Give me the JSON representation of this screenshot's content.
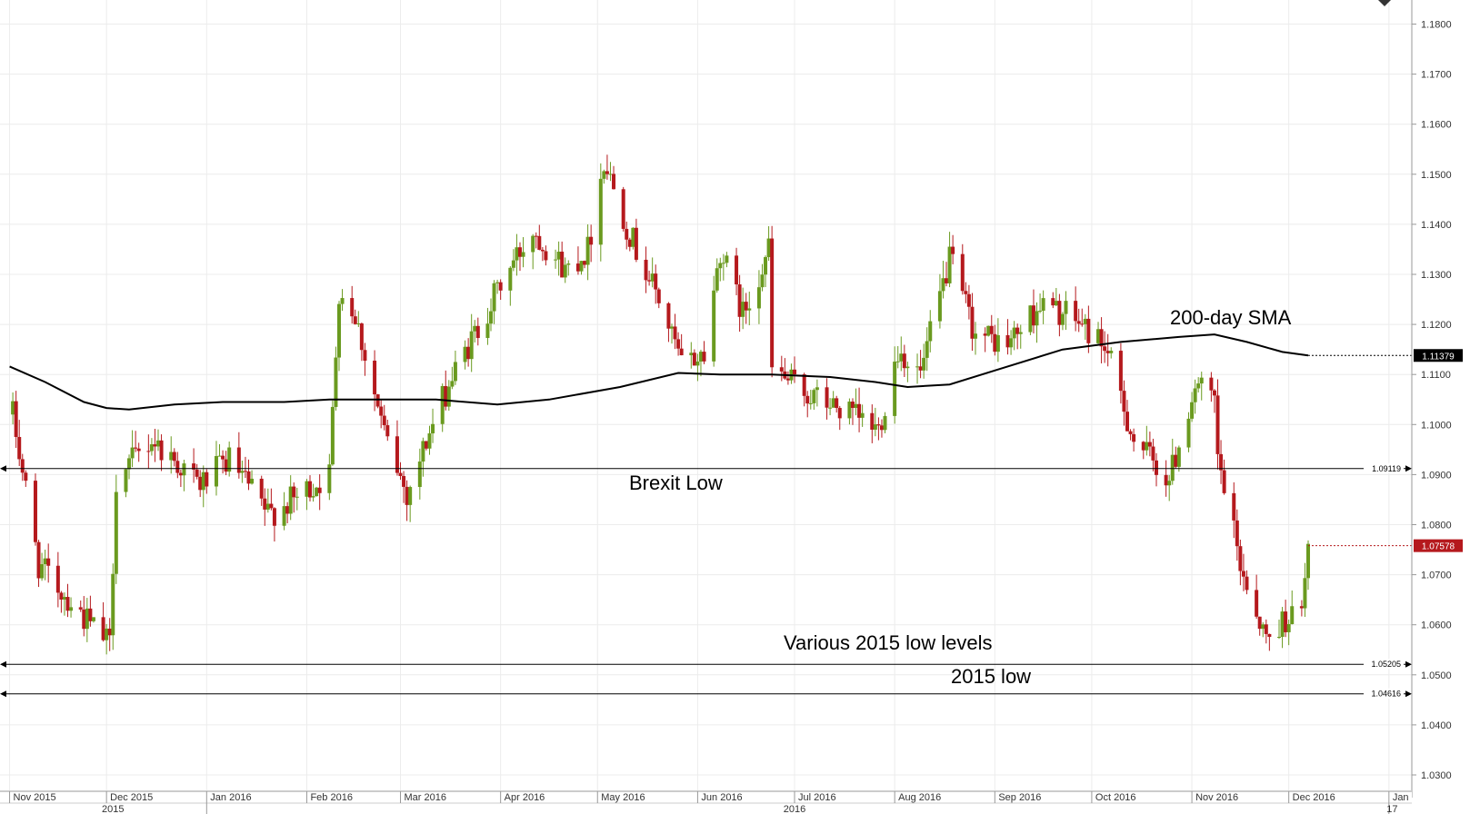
{
  "chart_data": {
    "type": "candlestick",
    "title": "",
    "xlabel": "",
    "ylabel": "",
    "ylim": [
      1.025,
      1.19
    ],
    "y_ticks": [
      "1.0300",
      "1.0400",
      "1.0500",
      "1.0600",
      "1.0700",
      "1.0800",
      "1.0900",
      "1.1000",
      "1.1100",
      "1.1200",
      "1.1300",
      "1.1400",
      "1.1500",
      "1.1600",
      "1.1700",
      "1.1800"
    ],
    "x_months": [
      "Nov 2015",
      "Dec 2015",
      "Jan 2016",
      "Feb 2016",
      "Mar 2016",
      "Apr 2016",
      "May 2016",
      "Jun 2016",
      "Jul 2016",
      "Aug 2016",
      "Sep 2016",
      "Oct 2016",
      "Nov 2016",
      "Dec 2016",
      "Jan"
    ],
    "x_years": [
      "2015",
      "2016",
      "17"
    ],
    "colors": {
      "up": "#6a9a1f",
      "down": "#b5191d",
      "sma": "#000000",
      "last_price": "#b5191d",
      "sma_tag": "#000000",
      "grid": "#ececec"
    },
    "price_path": [
      [
        "2015-11-02",
        1.102
      ],
      [
        "2015-11-10",
        1.072
      ],
      [
        "2015-11-18",
        1.066
      ],
      [
        "2015-11-26",
        1.06
      ],
      [
        "2015-12-02",
        1.056
      ],
      [
        "2015-12-04",
        1.089
      ],
      [
        "2015-12-15",
        1.097
      ],
      [
        "2015-12-30",
        1.088
      ],
      [
        "2016-01-08",
        1.093
      ],
      [
        "2016-01-20",
        1.082
      ],
      [
        "2016-01-28",
        1.085
      ],
      [
        "2016-02-08",
        1.09
      ],
      [
        "2016-02-11",
        1.127
      ],
      [
        "2016-02-16",
        1.122
      ],
      [
        "2016-02-25",
        1.098
      ],
      [
        "2016-03-03",
        1.086
      ],
      [
        "2016-03-08",
        1.095
      ],
      [
        "2016-03-16",
        1.108
      ],
      [
        "2016-03-24",
        1.118
      ],
      [
        "2016-04-01",
        1.128
      ],
      [
        "2016-04-11",
        1.139
      ],
      [
        "2016-04-21",
        1.131
      ],
      [
        "2016-04-28",
        1.135
      ],
      [
        "2016-05-03",
        1.153
      ],
      [
        "2016-05-11",
        1.138
      ],
      [
        "2016-05-20",
        1.125
      ],
      [
        "2016-05-27",
        1.112
      ],
      [
        "2016-06-03",
        1.114
      ],
      [
        "2016-06-08",
        1.135
      ],
      [
        "2016-06-15",
        1.122
      ],
      [
        "2016-06-23",
        1.135
      ],
      [
        "2016-06-24",
        1.111
      ],
      [
        "2016-07-05",
        1.106
      ],
      [
        "2016-07-15",
        1.103
      ],
      [
        "2016-07-27",
        1.099
      ],
      [
        "2016-08-02",
        1.115
      ],
      [
        "2016-08-09",
        1.11
      ],
      [
        "2016-08-18",
        1.133
      ],
      [
        "2016-08-26",
        1.118
      ],
      [
        "2016-09-05",
        1.116
      ],
      [
        "2016-09-15",
        1.124
      ],
      [
        "2016-09-26",
        1.121
      ],
      [
        "2016-10-05",
        1.116
      ],
      [
        "2016-10-14",
        1.097
      ],
      [
        "2016-10-25",
        1.089
      ],
      [
        "2016-11-02",
        1.108
      ],
      [
        "2016-11-08",
        1.104
      ],
      [
        "2016-11-09",
        1.093
      ],
      [
        "2016-11-16",
        1.072
      ],
      [
        "2016-11-24",
        1.057
      ],
      [
        "2016-12-01",
        1.062
      ],
      [
        "2016-12-05",
        1.062
      ],
      [
        "2016-12-07",
        1.0758
      ]
    ],
    "series": [
      {
        "name": "200-day SMA",
        "points": [
          [
            "2015-11-01",
            1.1116
          ],
          [
            "2015-11-12",
            1.1085
          ],
          [
            "2015-11-24",
            1.1045
          ],
          [
            "2015-12-01",
            1.1033
          ],
          [
            "2015-12-08",
            1.103
          ],
          [
            "2015-12-22",
            1.104
          ],
          [
            "2016-01-06",
            1.1045
          ],
          [
            "2016-01-25",
            1.1045
          ],
          [
            "2016-02-08",
            1.105
          ],
          [
            "2016-02-25",
            1.105
          ],
          [
            "2016-03-12",
            1.105
          ],
          [
            "2016-03-31",
            1.104
          ],
          [
            "2016-04-16",
            1.105
          ],
          [
            "2016-05-08",
            1.1075
          ],
          [
            "2016-05-26",
            1.1103
          ],
          [
            "2016-06-08",
            1.11
          ],
          [
            "2016-06-24",
            1.11
          ],
          [
            "2016-07-12",
            1.1095
          ],
          [
            "2016-07-26",
            1.1085
          ],
          [
            "2016-08-05",
            1.1075
          ],
          [
            "2016-08-18",
            1.108
          ],
          [
            "2016-09-02",
            1.111
          ],
          [
            "2016-09-22",
            1.115
          ],
          [
            "2016-10-10",
            1.1165
          ],
          [
            "2016-10-28",
            1.1175
          ],
          [
            "2016-11-08",
            1.118
          ],
          [
            "2016-11-18",
            1.1165
          ],
          [
            "2016-11-29",
            1.1145
          ],
          [
            "2016-12-07",
            1.1138
          ]
        ]
      }
    ],
    "horizontal_levels": [
      {
        "value": 1.0912,
        "label": "1.09119",
        "annotation": "Brexit Low"
      },
      {
        "value": 1.0521,
        "label": "1.05205",
        "annotation": "Various 2015 low levels"
      },
      {
        "value": 1.0462,
        "label": "1.04616",
        "annotation": "2015 low"
      }
    ],
    "price_tags": [
      {
        "kind": "sma",
        "value": 1.1138,
        "label": "1.11379"
      },
      {
        "kind": "last",
        "value": 1.0758,
        "label": "1.07578"
      }
    ],
    "annotations": [
      "200-day SMA",
      "Brexit Low",
      "Various 2015 low levels",
      "2015 low"
    ]
  }
}
